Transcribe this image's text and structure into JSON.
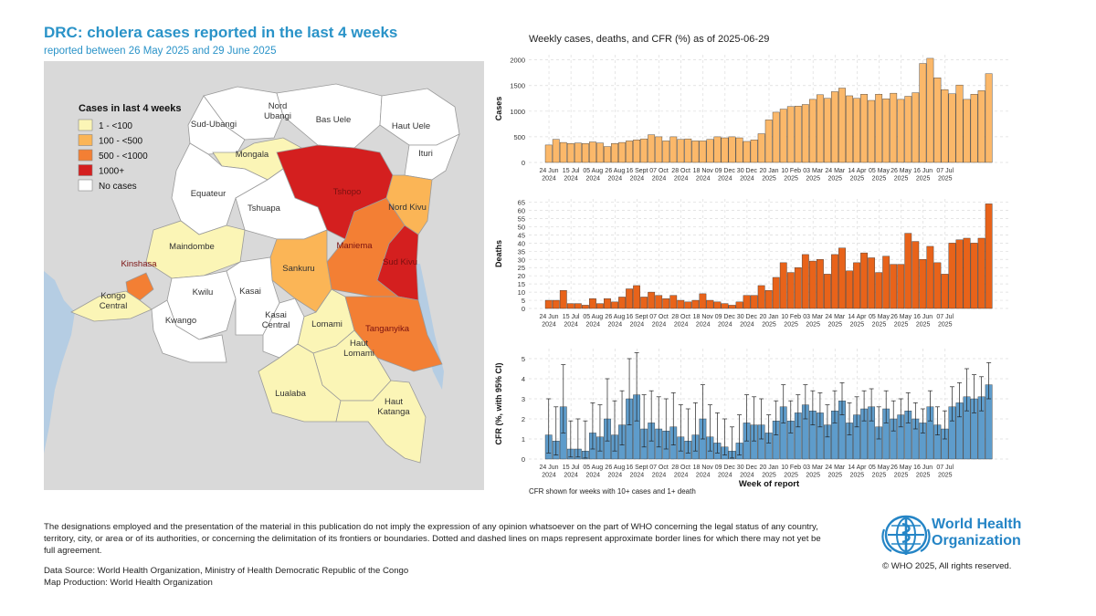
{
  "header": {
    "title": "DRC: cholera cases reported in the last 4 weeks",
    "subtitle": "reported between 26 May 2025 and 29 June 2025"
  },
  "map": {
    "legend_title": "Cases in last 4 weeks",
    "legend": [
      {
        "label": "1 - <100",
        "color": "#fbf5b6"
      },
      {
        "label": "100 - <500",
        "color": "#fbb556"
      },
      {
        "label": "500 - <1000",
        "color": "#f37f34"
      },
      {
        "label": "1000+",
        "color": "#d41f1f"
      },
      {
        "label": "No cases",
        "color": "#ffffff"
      }
    ],
    "provinces": [
      {
        "name": "Nord\nUbangi",
        "category": "No cases"
      },
      {
        "name": "Sud-Ubangi",
        "category": "No cases"
      },
      {
        "name": "Bas Uele",
        "category": "No cases"
      },
      {
        "name": "Haut Uele",
        "category": "No cases"
      },
      {
        "name": "Ituri",
        "category": "No cases"
      },
      {
        "name": "Mongala",
        "category": "1 - <100"
      },
      {
        "name": "Tshopo",
        "category": "1000+"
      },
      {
        "name": "Equateur",
        "category": "No cases"
      },
      {
        "name": "Tshuapa",
        "category": "No cases"
      },
      {
        "name": "Nord Kivu",
        "category": "100 - <500"
      },
      {
        "name": "Maindombe",
        "category": "1 - <100"
      },
      {
        "name": "Maniema",
        "category": "500 - <1000"
      },
      {
        "name": "Sud Kivu",
        "category": "1000+"
      },
      {
        "name": "Sankuru",
        "category": "100 - <500"
      },
      {
        "name": "Kinshasa",
        "category": "500 - <1000"
      },
      {
        "name": "Kongo\nCentral",
        "category": "1 - <100"
      },
      {
        "name": "Kwilu",
        "category": "No cases"
      },
      {
        "name": "Kasai",
        "category": "No cases"
      },
      {
        "name": "Kwango",
        "category": "No cases"
      },
      {
        "name": "Kasai\nCentral",
        "category": "No cases"
      },
      {
        "name": "Lomami",
        "category": "1 - <100"
      },
      {
        "name": "Tanganyika",
        "category": "500 - <1000"
      },
      {
        "name": "Haut\nLomami",
        "category": "1 - <100"
      },
      {
        "name": "Lualaba",
        "category": "1 - <100"
      },
      {
        "name": "Haut\nKatanga",
        "category": "1 - <100"
      }
    ]
  },
  "charts": {
    "title": "Weekly cases, deaths, and CFR (%) as of 2025-06-29",
    "cfr_note": "CFR shown for weeks with 10+ cases and 1+ death"
  },
  "chart_data": [
    {
      "type": "bar",
      "ylabel": "Cases",
      "color": "#fbb86a",
      "ylim": [
        0,
        2100
      ],
      "yticks": [
        0,
        500,
        1000,
        1500,
        2000
      ],
      "xticks": [
        "24 Jun\n2024",
        "15 Jul\n2024",
        "05 Aug\n2024",
        "26 Aug\n2024",
        "16 Sept\n2024",
        "07 Oct\n2024",
        "28 Oct\n2024",
        "18 Nov\n2024",
        "09 Dec\n2024",
        "30 Dec\n2024",
        "20 Jan\n2025",
        "10 Feb\n2025",
        "03 Mar\n2025",
        "24 Mar\n2025",
        "14 Apr\n2025",
        "05 May\n2025",
        "26 May\n2025",
        "16 Jun\n2025",
        "07 Jul\n2025"
      ],
      "values": [
        340,
        450,
        390,
        370,
        380,
        370,
        400,
        380,
        310,
        370,
        390,
        420,
        440,
        460,
        540,
        500,
        420,
        500,
        450,
        460,
        420,
        420,
        450,
        500,
        480,
        500,
        480,
        410,
        440,
        560,
        830,
        980,
        1040,
        1090,
        1100,
        1130,
        1230,
        1320,
        1250,
        1380,
        1450,
        1300,
        1250,
        1330,
        1210,
        1330,
        1240,
        1350,
        1230,
        1290,
        1360,
        1930,
        2030,
        1650,
        1420,
        1340,
        1510,
        1230,
        1330,
        1400,
        1730
      ]
    },
    {
      "type": "bar",
      "ylabel": "Deaths",
      "color": "#e8631a",
      "ylim": [
        0,
        67
      ],
      "yticks": [
        0,
        5,
        10,
        15,
        20,
        25,
        30,
        35,
        40,
        45,
        50,
        55,
        60,
        65
      ],
      "xticks": [
        "24 Jun\n2024",
        "15 Jul\n2024",
        "05 Aug\n2024",
        "26 Aug\n2024",
        "16 Sept\n2024",
        "07 Oct\n2024",
        "28 Oct\n2024",
        "18 Nov\n2024",
        "09 Dec\n2024",
        "30 Dec\n2024",
        "20 Jan\n2025",
        "10 Feb\n2025",
        "03 Mar\n2025",
        "24 Mar\n2025",
        "14 Apr\n2025",
        "05 May\n2025",
        "26 May\n2025",
        "16 Jun\n2025",
        "07 Jul\n2025"
      ],
      "values": [
        5,
        5,
        11,
        3,
        3,
        2,
        6,
        3,
        6,
        4,
        7,
        12,
        14,
        7,
        10,
        8,
        6,
        8,
        5,
        4,
        5,
        9,
        5,
        4,
        3,
        2,
        4,
        8,
        8,
        14,
        11,
        19,
        28,
        22,
        25,
        33,
        29,
        30,
        21,
        33,
        37,
        23,
        28,
        34,
        31,
        22,
        32,
        27,
        27,
        46,
        41,
        30,
        38,
        28,
        21,
        40,
        42,
        43,
        40,
        43,
        64
      ]
    },
    {
      "type": "bar",
      "ylabel": "CFR (%, with 95% CI)",
      "xlabel": "Week of report",
      "color": "#5e9ccb",
      "ylim": [
        0,
        5.5
      ],
      "yticks": [
        0,
        1,
        2,
        3,
        4,
        5
      ],
      "xticks": [
        "24 Jun\n2024",
        "15 Jul\n2024",
        "05 Aug\n2024",
        "26 Aug\n2024",
        "16 Sept\n2024",
        "07 Oct\n2024",
        "28 Oct\n2024",
        "18 Nov\n2024",
        "09 Dec\n2024",
        "30 Dec\n2024",
        "20 Jan\n2025",
        "10 Feb\n2025",
        "03 Mar\n2025",
        "24 Mar\n2025",
        "14 Apr\n2025",
        "05 May\n2025",
        "26 May\n2025",
        "16 Jun\n2025",
        "07 Jul\n2025"
      ],
      "values": [
        1.2,
        0.9,
        2.6,
        0.5,
        0.5,
        0.4,
        1.3,
        1.1,
        2.0,
        1.2,
        1.7,
        3.0,
        3.2,
        1.5,
        1.8,
        1.5,
        1.4,
        1.6,
        1.1,
        0.9,
        1.2,
        2.0,
        1.1,
        0.8,
        0.6,
        0.4,
        0.8,
        1.8,
        1.7,
        1.7,
        1.3,
        1.9,
        2.6,
        1.9,
        2.3,
        2.7,
        2.4,
        2.3,
        1.7,
        2.4,
        2.9,
        1.8,
        2.2,
        2.5,
        2.6,
        1.6,
        2.5,
        2.0,
        2.2,
        2.4,
        2.0,
        1.8,
        2.6,
        1.7,
        1.5,
        2.6,
        2.8,
        3.1,
        3.0,
        3.1,
        3.7
      ],
      "ci_low": [
        0.3,
        0.2,
        1.3,
        0.1,
        0.1,
        0.05,
        0.5,
        0.4,
        0.9,
        0.4,
        0.7,
        1.7,
        1.9,
        0.6,
        0.9,
        0.6,
        0.5,
        0.7,
        0.4,
        0.3,
        0.4,
        1.0,
        0.4,
        0.3,
        0.2,
        0.05,
        0.2,
        0.9,
        0.9,
        1.0,
        0.8,
        1.2,
        1.8,
        1.3,
        1.6,
        2.0,
        1.7,
        1.6,
        1.1,
        1.8,
        2.2,
        1.2,
        1.6,
        1.9,
        1.9,
        1.0,
        1.8,
        1.4,
        1.6,
        1.8,
        1.5,
        1.3,
        1.9,
        1.2,
        1.0,
        1.9,
        2.1,
        2.4,
        2.3,
        2.4,
        3.0
      ],
      "ci_high": [
        3.0,
        2.6,
        4.7,
        1.9,
        2.0,
        1.9,
        2.8,
        2.7,
        4.0,
        2.9,
        3.4,
        5.0,
        5.3,
        3.2,
        3.4,
        3.1,
        3.0,
        3.3,
        2.7,
        2.5,
        2.8,
        3.7,
        2.7,
        2.3,
        2.0,
        1.6,
        2.2,
        3.2,
        3.1,
        3.0,
        2.2,
        2.9,
        3.7,
        2.9,
        3.2,
        3.7,
        3.4,
        3.3,
        2.7,
        3.4,
        3.8,
        2.8,
        3.1,
        3.4,
        3.5,
        2.6,
        3.4,
        2.9,
        3.0,
        3.3,
        2.8,
        2.5,
        3.4,
        2.6,
        2.4,
        3.6,
        3.8,
        4.5,
        4.2,
        4.1,
        4.8
      ]
    }
  ],
  "footer": {
    "disclaimer": "The designations employed and the presentation of the material in this publication do not imply the expression of any opinion whatsoever on the part of WHO concerning the legal status of any country, territory, city, or area or of its authorities, or concerning the delimitation of its frontiers or boundaries. Dotted and dashed lines on maps represent approximate border lines for which there may not yet be full agreement.",
    "data_source": "Data Source: World Health Organization, Ministry of Health Democratic Republic of the Congo",
    "map_production": "Map Production: World Health Organization",
    "org_name_line1": "World Health",
    "org_name_line2": "Organization",
    "copyright": "© WHO 2025, All rights reserved."
  }
}
